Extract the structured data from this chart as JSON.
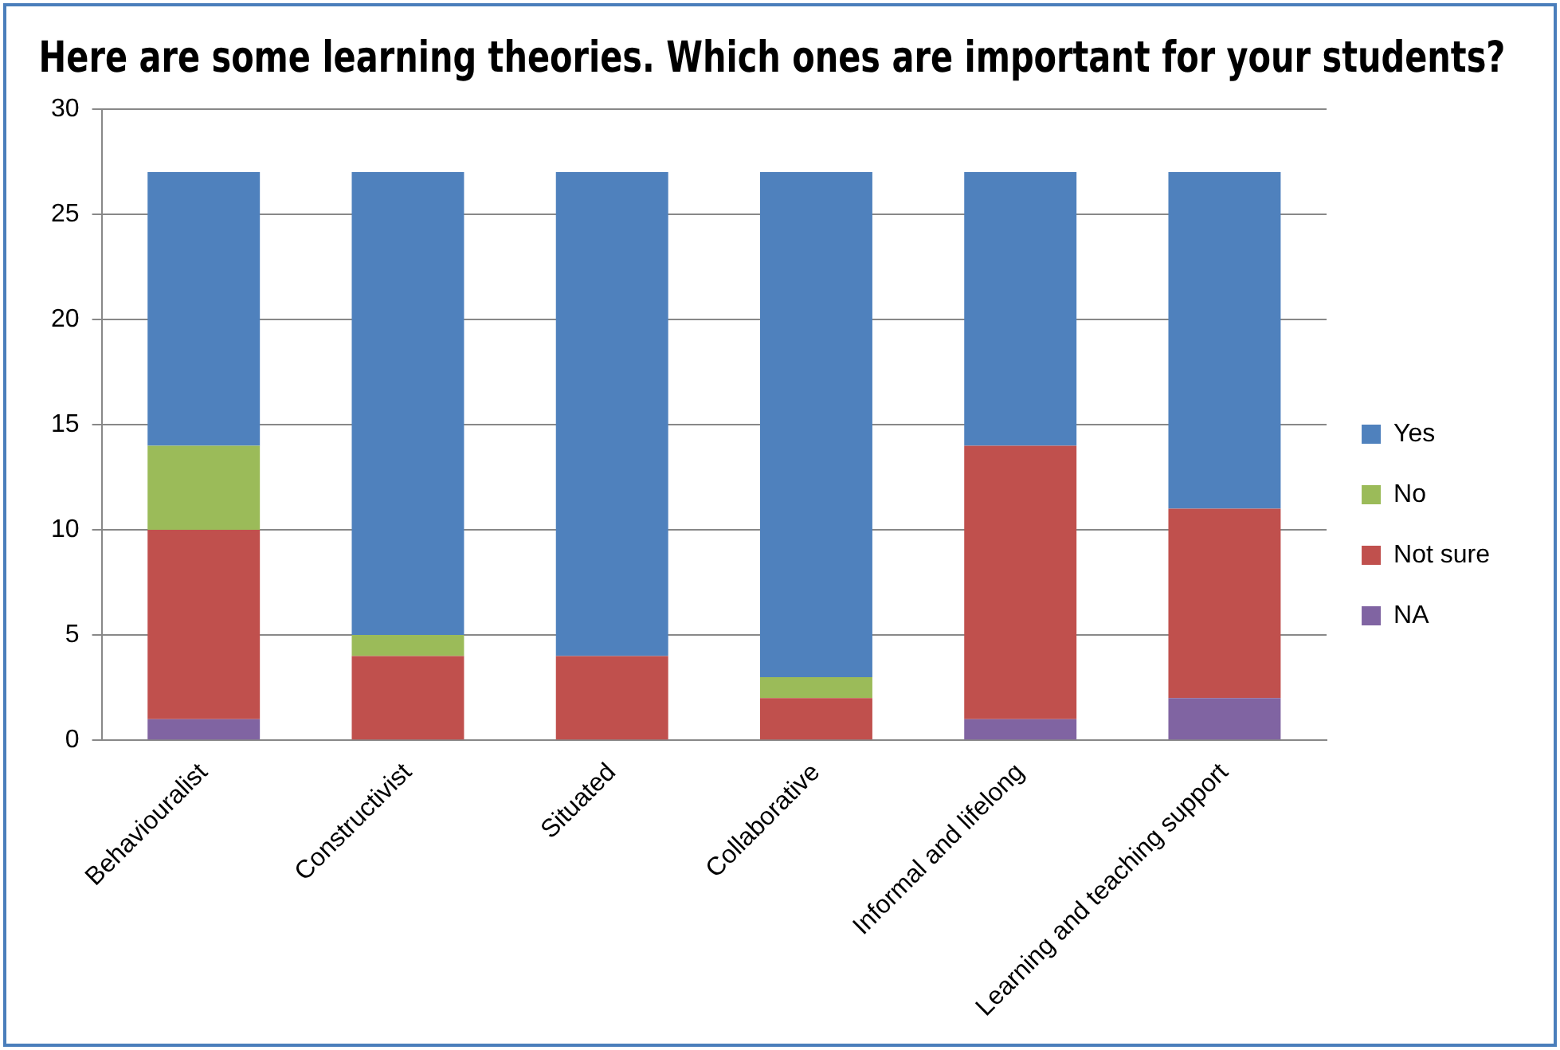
{
  "chart_data": {
    "type": "bar",
    "title": "Here are some learning theories. Which ones are important for your students?",
    "categories": [
      "Behaviouralist",
      "Constructivist",
      "Situated",
      "Collaborative",
      "Informal and lifelong",
      "Learning and teaching support"
    ],
    "stacked": true,
    "series": [
      {
        "name": "NA",
        "color": "#8064a2",
        "values": [
          1,
          0,
          0,
          0,
          1,
          2
        ]
      },
      {
        "name": "Not sure",
        "color": "#c0504d",
        "values": [
          9,
          4,
          4,
          2,
          13,
          9
        ]
      },
      {
        "name": "No",
        "color": "#9bbb59",
        "values": [
          4,
          1,
          0,
          1,
          0,
          0
        ]
      },
      {
        "name": "Yes",
        "color": "#4f81bd",
        "values": [
          13,
          22,
          23,
          24,
          13,
          16
        ]
      }
    ],
    "ylim": [
      0,
      30
    ],
    "yticks": [
      0,
      5,
      10,
      15,
      20,
      25,
      30
    ],
    "grid": "y",
    "legend": "right"
  }
}
